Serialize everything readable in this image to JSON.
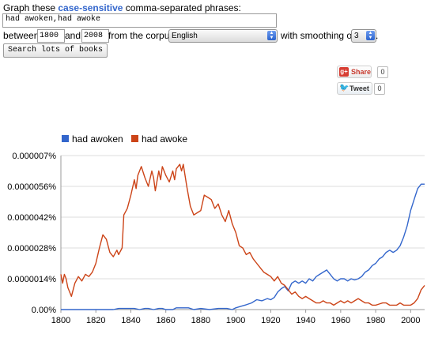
{
  "query": {
    "prompt_pre": "Graph these ",
    "prompt_em": "case-sensitive",
    "prompt_post": " comma-separated phrases:",
    "phrases_value": "had awoken,had awoke",
    "between_label": "between",
    "start_year": "1800",
    "and_label": "and",
    "end_year": "2008",
    "corpus_label": "from the corpus",
    "corpus_value": "English",
    "smoothing_label": "with smoothing of",
    "smoothing_value": "3",
    "trailing_period": ".",
    "search_button": "Search lots of books"
  },
  "social": {
    "share_label": "Share",
    "share_count": "0",
    "tweet_label": "Tweet",
    "tweet_count": "0"
  },
  "colors": {
    "series1": "#3366cc",
    "series2": "#cc4418",
    "grid": "#dddddd",
    "axis": "#999999"
  },
  "chart_data": {
    "type": "line",
    "title": "",
    "xlabel": "",
    "ylabel": "",
    "xlim": [
      1800,
      2008
    ],
    "ylim": [
      0,
      7e-06
    ],
    "x_ticks": [
      1800,
      1820,
      1840,
      1860,
      1880,
      1900,
      1920,
      1940,
      1960,
      1980,
      2000
    ],
    "x_tick_labels": [
      "1800",
      "1820",
      "1840",
      "1860",
      "1880",
      "1900",
      "1920",
      "1940",
      "1960",
      "1980",
      "2000"
    ],
    "y_ticks": [
      0,
      1.4e-06,
      2.8e-06,
      4.2e-06,
      5.6e-06,
      7e-06
    ],
    "y_tick_labels": [
      "0.00%",
      "0.0000014%",
      "0.0000028%",
      "0.0000042%",
      "0.0000056%",
      "0.000007%"
    ],
    "legend_position": "top-left",
    "series": [
      {
        "name": "had awoken",
        "x": [
          1800,
          1830,
          1833,
          1836,
          1839,
          1842,
          1845,
          1848,
          1850,
          1853,
          1856,
          1858,
          1860,
          1862,
          1864,
          1866,
          1868,
          1870,
          1873,
          1876,
          1880,
          1885,
          1890,
          1895,
          1898,
          1900,
          1903,
          1906,
          1909,
          1912,
          1915,
          1918,
          1920,
          1922,
          1924,
          1926,
          1928,
          1930,
          1932,
          1934,
          1936,
          1938,
          1940,
          1942,
          1944,
          1946,
          1948,
          1950,
          1952,
          1954,
          1956,
          1958,
          1960,
          1962,
          1964,
          1966,
          1968,
          1970,
          1972,
          1974,
          1976,
          1978,
          1980,
          1982,
          1984,
          1986,
          1988,
          1990,
          1992,
          1994,
          1996,
          1998,
          2000,
          2002,
          2004,
          2006,
          2008
        ],
        "values": [
          0,
          0,
          5e-08,
          5e-08,
          5e-08,
          5e-08,
          0,
          5e-08,
          5e-08,
          0,
          5e-08,
          5e-08,
          0,
          0,
          0,
          8e-08,
          8e-08,
          8e-08,
          8e-08,
          0,
          5e-08,
          0,
          5e-08,
          5e-08,
          0,
          8e-08,
          1.5e-07,
          2.2e-07,
          3e-07,
          4.5e-07,
          4e-07,
          5e-07,
          4.5e-07,
          5.5e-07,
          8e-07,
          9.5e-07,
          1.05e-06,
          8.5e-07,
          1.2e-06,
          1.3e-06,
          1.2e-06,
          1.3e-06,
          1.2e-06,
          1.4e-06,
          1.3e-06,
          1.5e-06,
          1.6e-06,
          1.7e-06,
          1.8e-06,
          1.6e-06,
          1.4e-06,
          1.3e-06,
          1.4e-06,
          1.4e-06,
          1.3e-06,
          1.4e-06,
          1.35e-06,
          1.4e-06,
          1.5e-06,
          1.7e-06,
          1.8e-06,
          2e-06,
          2.1e-06,
          2.3e-06,
          2.4e-06,
          2.6e-06,
          2.7e-06,
          2.6e-06,
          2.7e-06,
          2.9e-06,
          3.3e-06,
          3.8e-06,
          4.5e-06,
          5e-06,
          5.5e-06,
          5.7e-06,
          5.7e-06
        ]
      },
      {
        "name": "had awoke",
        "x": [
          1800,
          1801,
          1802,
          1803,
          1804,
          1806,
          1808,
          1810,
          1812,
          1814,
          1816,
          1818,
          1820,
          1822,
          1824,
          1826,
          1828,
          1830,
          1832,
          1833,
          1835,
          1836,
          1838,
          1840,
          1842,
          1843,
          1844,
          1845,
          1846,
          1848,
          1850,
          1852,
          1853,
          1854,
          1856,
          1857,
          1858,
          1860,
          1862,
          1864,
          1865,
          1866,
          1868,
          1869,
          1870,
          1872,
          1874,
          1876,
          1878,
          1880,
          1882,
          1884,
          1886,
          1888,
          1890,
          1892,
          1894,
          1896,
          1898,
          1900,
          1902,
          1904,
          1906,
          1908,
          1910,
          1912,
          1914,
          1916,
          1918,
          1920,
          1922,
          1924,
          1926,
          1928,
          1930,
          1932,
          1934,
          1936,
          1938,
          1940,
          1942,
          1944,
          1946,
          1948,
          1950,
          1952,
          1954,
          1956,
          1958,
          1960,
          1962,
          1964,
          1966,
          1968,
          1970,
          1972,
          1974,
          1976,
          1978,
          1980,
          1982,
          1984,
          1986,
          1988,
          1990,
          1992,
          1994,
          1996,
          1998,
          2000,
          2002,
          2004,
          2006,
          2008
        ],
        "values": [
          1.6e-06,
          1.2e-06,
          1.6e-06,
          1.4e-06,
          1e-06,
          6e-07,
          1.2e-06,
          1.5e-06,
          1.3e-06,
          1.6e-06,
          1.5e-06,
          1.7e-06,
          2.1e-06,
          2.8e-06,
          3.4e-06,
          3.2e-06,
          2.6e-06,
          2.4e-06,
          2.7e-06,
          2.5e-06,
          2.8e-06,
          4.3e-06,
          4.6e-06,
          5.2e-06,
          5.9e-06,
          5.5e-06,
          6.1e-06,
          6.3e-06,
          6.5e-06,
          6e-06,
          5.6e-06,
          6.3e-06,
          6e-06,
          5.4e-06,
          6.3e-06,
          5.9e-06,
          6.5e-06,
          6.1e-06,
          5.8e-06,
          6.3e-06,
          5.9e-06,
          6.4e-06,
          6.6e-06,
          6.3e-06,
          6.6e-06,
          5.6e-06,
          4.7e-06,
          4.3e-06,
          4.4e-06,
          4.5e-06,
          5.2e-06,
          5.1e-06,
          5e-06,
          4.6e-06,
          4.8e-06,
          4.3e-06,
          4e-06,
          4.5e-06,
          3.9e-06,
          3.5e-06,
          2.9e-06,
          2.8e-06,
          2.5e-06,
          2.6e-06,
          2.3e-06,
          2.1e-06,
          1.9e-06,
          1.7e-06,
          1.6e-06,
          1.5e-06,
          1.3e-06,
          1.5e-06,
          1.2e-06,
          1.1e-06,
          9e-07,
          7e-07,
          8e-07,
          6e-07,
          5e-07,
          6e-07,
          5e-07,
          4e-07,
          3e-07,
          3e-07,
          4e-07,
          3e-07,
          3e-07,
          2e-07,
          3e-07,
          4e-07,
          3e-07,
          4e-07,
          3e-07,
          4e-07,
          5e-07,
          4e-07,
          3e-07,
          3e-07,
          2e-07,
          2e-07,
          2.5e-07,
          3e-07,
          3e-07,
          2e-07,
          2e-07,
          2e-07,
          3e-07,
          2e-07,
          2e-07,
          2e-07,
          3e-07,
          5e-07,
          9e-07,
          1.1e-06
        ]
      }
    ]
  }
}
